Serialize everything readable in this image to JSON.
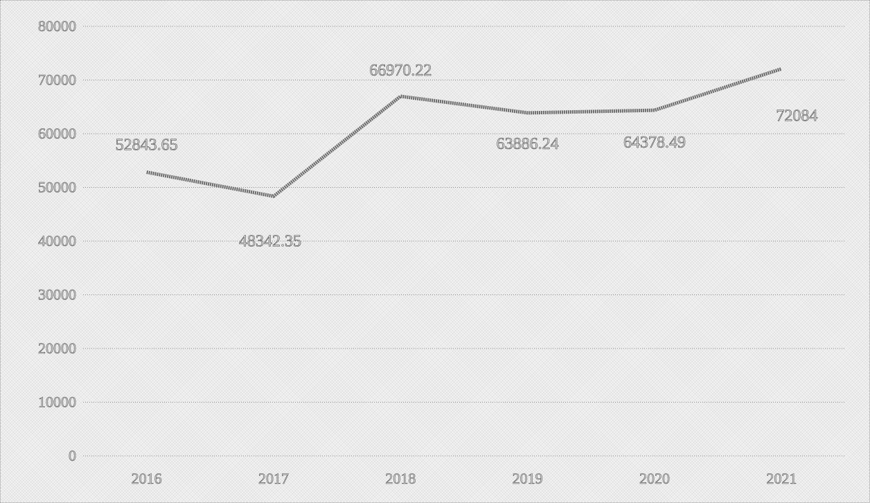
{
  "chart_data": {
    "type": "line",
    "title": "",
    "xlabel": "",
    "ylabel": "",
    "categories": [
      "2016",
      "2017",
      "2018",
      "2019",
      "2020",
      "2021"
    ],
    "series": [
      {
        "values": [
          52843.65,
          48342.35,
          66970.22,
          63886.24,
          64378.49,
          72084
        ],
        "labels": [
          "52843.65",
          "48342.35",
          "66970.22",
          "63886.24",
          "64378.49",
          "72084"
        ]
      }
    ],
    "ylim": [
      0,
      80000
    ],
    "yticks": [
      0,
      10000,
      20000,
      30000,
      40000,
      50000,
      60000,
      70000,
      80000
    ],
    "ytick_labels": [
      "0",
      "10000",
      "20000",
      "30000",
      "40000",
      "50000",
      "60000",
      "70000",
      "80000"
    ],
    "grid": true,
    "legend": "none",
    "colors": {
      "line": "#6a6a6a",
      "text": "#4a4a4a",
      "background": "#f4f4f4"
    }
  }
}
